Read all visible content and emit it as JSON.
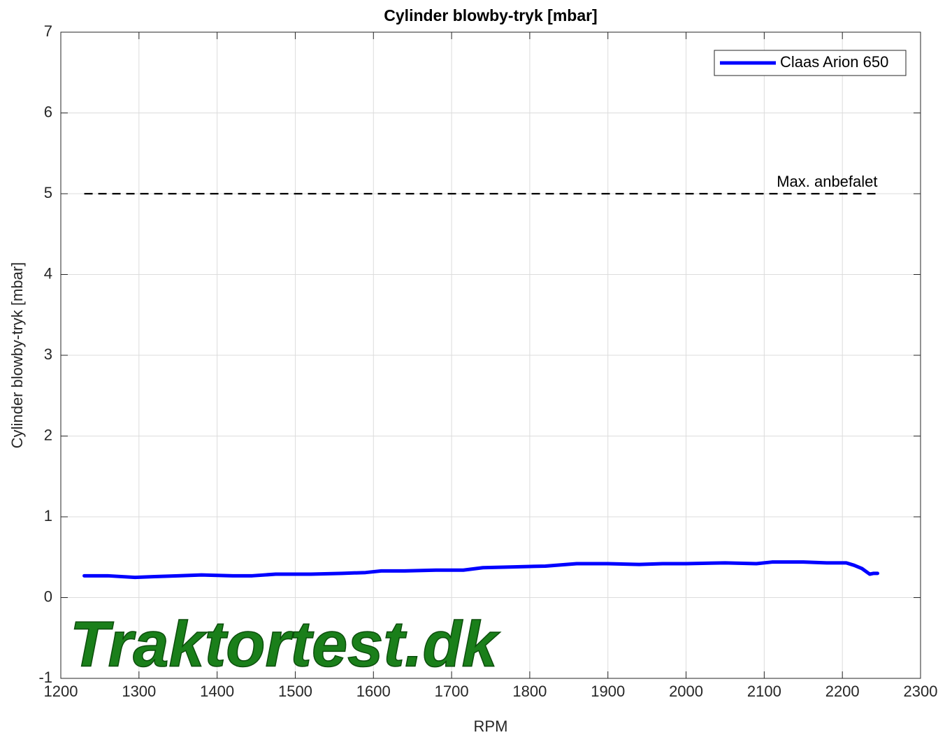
{
  "chart_data": {
    "type": "line",
    "title": "Cylinder blowby-tryk [mbar]",
    "xlabel": "RPM",
    "ylabel": "Cylinder blowby-tryk [mbar]",
    "x": [
      1230,
      1260,
      1295,
      1320,
      1350,
      1380,
      1420,
      1445,
      1475,
      1520,
      1560,
      1590,
      1610,
      1640,
      1680,
      1715,
      1740,
      1780,
      1820,
      1860,
      1900,
      1940,
      1970,
      2000,
      2050,
      2090,
      2110,
      2150,
      2180,
      2205,
      2215,
      2225,
      2235,
      2240,
      2245
    ],
    "series": [
      {
        "name": "Claas Arion 650",
        "color": "#0000ff",
        "values": [
          0.27,
          0.27,
          0.25,
          0.26,
          0.27,
          0.28,
          0.27,
          0.27,
          0.29,
          0.29,
          0.3,
          0.31,
          0.33,
          0.33,
          0.34,
          0.34,
          0.37,
          0.38,
          0.39,
          0.42,
          0.42,
          0.41,
          0.42,
          0.42,
          0.43,
          0.42,
          0.44,
          0.44,
          0.43,
          0.43,
          0.4,
          0.36,
          0.29,
          0.3,
          0.3
        ]
      }
    ],
    "reference_line": {
      "label": "Max. anbefalet",
      "value": 5,
      "x": [
        1230,
        2245
      ],
      "color": "#000000",
      "dashed": true
    },
    "watermark": "Traktortest.dk",
    "xlim": [
      1200,
      2300
    ],
    "xticks": [
      1200,
      1300,
      1400,
      1500,
      1600,
      1700,
      1800,
      1900,
      2000,
      2100,
      2200,
      2300
    ],
    "ylim": [
      -1,
      7
    ],
    "yticks": [
      -1,
      0,
      1,
      2,
      3,
      4,
      5,
      6,
      7
    ],
    "grid": true,
    "legend": "northeast"
  }
}
